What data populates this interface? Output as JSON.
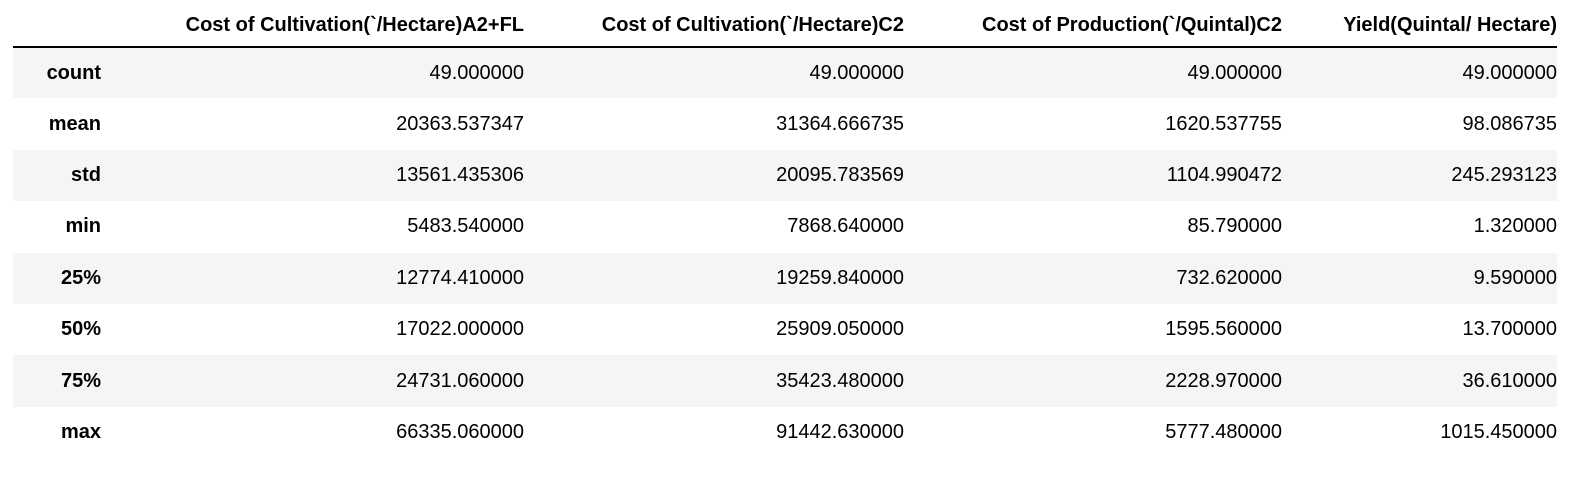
{
  "table": {
    "index_header": "",
    "columns": [
      "Cost of Cultivation(`/Hectare)A2+FL",
      "Cost of Cultivation(`/Hectare)C2",
      "Cost of Production(`/Quintal)C2",
      "Yield(Quintal/ Hectare)"
    ],
    "rows": [
      {
        "label": "count",
        "values": [
          "49.000000",
          "49.000000",
          "49.000000",
          "49.000000"
        ]
      },
      {
        "label": "mean",
        "values": [
          "20363.537347",
          "31364.666735",
          "1620.537755",
          "98.086735"
        ]
      },
      {
        "label": "std",
        "values": [
          "13561.435306",
          "20095.783569",
          "1104.990472",
          "245.293123"
        ]
      },
      {
        "label": "min",
        "values": [
          "5483.540000",
          "7868.640000",
          "85.790000",
          "1.320000"
        ]
      },
      {
        "label": "25%",
        "values": [
          "12774.410000",
          "19259.840000",
          "732.620000",
          "9.590000"
        ]
      },
      {
        "label": "50%",
        "values": [
          "17022.000000",
          "25909.050000",
          "1595.560000",
          "13.700000"
        ]
      },
      {
        "label": "75%",
        "values": [
          "24731.060000",
          "35423.480000",
          "2228.970000",
          "36.610000"
        ]
      },
      {
        "label": "max",
        "values": [
          "66335.060000",
          "91442.630000",
          "5777.480000",
          "1015.450000"
        ]
      }
    ]
  }
}
